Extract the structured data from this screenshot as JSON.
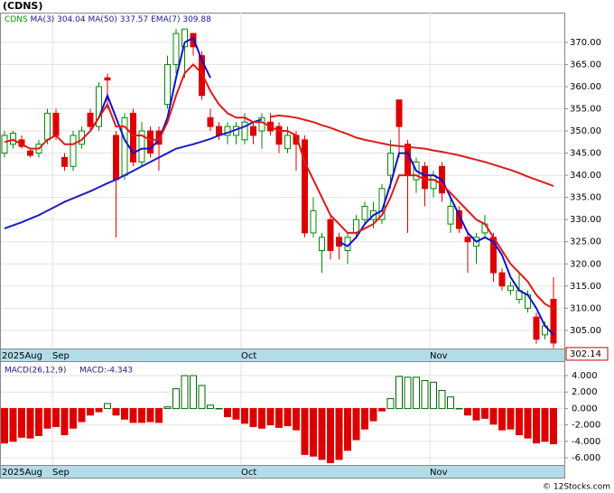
{
  "chart_data": {
    "type": "candlestick",
    "title": "(CDNS)",
    "symbol": "CDNS",
    "symbol_color": "#009900",
    "categories": [
      "2025Aug",
      null,
      null,
      null,
      null,
      null,
      "Sep",
      null,
      null,
      null,
      null,
      null,
      null,
      null,
      null,
      null,
      null,
      null,
      null,
      null,
      null,
      null,
      null,
      null,
      null,
      null,
      null,
      null,
      "Oct",
      null,
      null,
      null,
      null,
      null,
      null,
      null,
      null,
      null,
      null,
      null,
      null,
      null,
      null,
      null,
      null,
      null,
      null,
      null,
      null,
      null,
      "Nov",
      null,
      null,
      null,
      null,
      null,
      null,
      null,
      null,
      null,
      null,
      null,
      null,
      null,
      null
    ],
    "ohlc": {
      "open": [
        345,
        347,
        348,
        345.5,
        345,
        348,
        354,
        344,
        342,
        347,
        354,
        351,
        362,
        349,
        340,
        354,
        343,
        350,
        350,
        356,
        365,
        369,
        372,
        367,
        353,
        351,
        349,
        349,
        348,
        351,
        350,
        352,
        351,
        346,
        349,
        348,
        327,
        323,
        330,
        326,
        323,
        327,
        330,
        330,
        330,
        340,
        357,
        347,
        339,
        342,
        337,
        342,
        329,
        332,
        326,
        324,
        327,
        326,
        318,
        314,
        312,
        310,
        308,
        304,
        312
      ],
      "high": [
        350,
        350,
        349,
        346,
        348,
        355,
        355,
        345,
        350,
        351,
        355,
        361,
        363,
        350,
        354,
        355,
        352,
        351,
        351,
        367,
        373,
        373,
        372,
        368,
        355,
        352,
        352,
        352,
        354,
        352,
        354,
        354,
        352,
        351,
        350,
        349,
        335,
        327,
        331,
        327,
        327,
        331,
        334,
        334,
        338,
        348,
        357,
        348,
        344,
        343,
        341,
        343,
        335,
        333,
        327,
        327,
        331,
        327,
        319,
        316,
        318,
        314,
        309,
        307,
        317
      ],
      "low": [
        344,
        346,
        346,
        344,
        344,
        347,
        348,
        341,
        341,
        346,
        350,
        350,
        355,
        326,
        339,
        342,
        342,
        344,
        341,
        355,
        363,
        362,
        367,
        357,
        350,
        348,
        347,
        347,
        347,
        347,
        346,
        349,
        345,
        345,
        341,
        326,
        326,
        318,
        321,
        321,
        320,
        326,
        329,
        328,
        329,
        337,
        344,
        327,
        336,
        333,
        335,
        334,
        327,
        327,
        318,
        320,
        326,
        316,
        314,
        313,
        311,
        309,
        302,
        303,
        301
      ],
      "close": [
        349,
        349.5,
        346.5,
        344.5,
        347,
        354,
        349,
        342,
        349,
        350,
        351,
        360,
        361.5,
        339,
        353,
        343,
        350,
        345,
        347,
        365,
        372,
        373,
        369,
        358,
        351,
        349,
        351,
        351,
        352,
        349,
        353,
        350,
        347,
        349,
        347,
        327,
        332,
        326,
        323,
        324,
        326,
        330,
        333,
        332,
        337,
        345,
        351,
        340,
        343,
        337,
        340,
        336,
        333,
        328,
        325,
        326,
        329,
        318,
        315,
        315,
        314,
        313,
        303,
        306,
        302.14
      ]
    },
    "up_color": "#008800",
    "down_color": "#dd0000",
    "last_price_label": "302.14",
    "ylim": [
      300.9,
      376.7
    ],
    "yticks": [
      {
        "value": 305,
        "label": "305.00"
      },
      {
        "value": 310,
        "label": "310.00"
      },
      {
        "value": 315,
        "label": "315.00"
      },
      {
        "value": 320,
        "label": "320.00"
      },
      {
        "value": 325,
        "label": "325.00"
      },
      {
        "value": 330,
        "label": "330.00"
      },
      {
        "value": 335,
        "label": "335.00"
      },
      {
        "value": 340,
        "label": "340.00"
      },
      {
        "value": 345,
        "label": "345.00"
      },
      {
        "value": 350,
        "label": "350.00"
      },
      {
        "value": 355,
        "label": "355.00"
      },
      {
        "value": 360,
        "label": "360.00"
      },
      {
        "value": 365,
        "label": "365.00"
      },
      {
        "value": 370,
        "label": "370.00"
      }
    ],
    "grid": true,
    "lines": [
      {
        "name": "MA(3)",
        "legend_value": "304.04",
        "color": "#1010cc",
        "values": [
          null,
          null,
          null,
          null,
          null,
          null,
          null,
          null,
          null,
          null,
          350,
          353,
          358,
          353,
          348,
          345,
          346,
          346,
          348,
          353,
          362,
          370,
          371,
          366,
          362,
          null,
          null,
          null,
          null,
          null,
          null,
          null,
          null,
          null,
          null,
          null,
          null,
          null,
          null,
          325,
          324,
          326,
          329,
          331,
          332,
          338,
          345,
          345,
          341,
          340,
          340,
          339,
          335,
          331,
          327,
          325,
          326,
          325,
          322,
          317,
          314,
          313,
          310,
          306,
          304.04
        ]
      },
      {
        "name": "MA(50)",
        "legend_value": "337.57",
        "color": "#dd1c1c",
        "early_color": "#1c1cc8",
        "early_until": 31,
        "values": [
          328,
          328.7,
          329.4,
          330.2,
          331,
          332,
          333,
          334,
          334.8,
          335.6,
          336.4,
          337.3,
          338.2,
          339,
          340,
          341,
          342,
          343,
          344,
          345,
          346,
          346.5,
          347,
          347.6,
          348.2,
          349,
          349.6,
          350.3,
          351,
          352,
          352.6,
          353.2,
          353.5,
          353.3,
          353,
          352.5,
          352,
          351.3,
          350.7,
          350,
          349.3,
          348.5,
          348,
          347.6,
          347.2,
          346.8,
          346.6,
          346.4,
          346.2,
          346,
          345.6,
          345.3,
          344.9,
          344.5,
          344,
          343.5,
          343,
          342.4,
          341.8,
          341.2,
          340.5,
          339.7,
          339,
          338.3,
          337.57
        ]
      },
      {
        "name": "EMA(7)",
        "legend_value": "309.88",
        "color": "#e01818",
        "values": [
          347.5,
          348,
          347,
          346,
          346,
          348,
          349,
          347,
          347,
          348,
          350,
          353,
          356,
          351,
          351,
          349,
          349,
          348,
          348,
          352,
          358,
          363,
          365,
          363,
          359,
          356,
          354,
          353,
          353,
          352,
          352,
          351,
          350,
          350,
          349,
          343,
          339,
          335,
          331,
          329,
          327,
          327,
          328,
          329,
          331,
          335,
          340,
          340,
          340,
          339,
          339,
          338,
          336,
          334,
          332,
          330,
          329,
          326,
          323,
          320,
          318,
          316,
          313,
          311,
          309.88
        ]
      }
    ],
    "macd": {
      "title": "MACD(26,12,9)",
      "label": "MACD:-4.343",
      "up_color": "#006600",
      "down_color": "#dd0000",
      "values": [
        -4.2,
        -4,
        -3.5,
        -3.6,
        -3.3,
        -2.4,
        -2.2,
        -3.2,
        -2.4,
        -1.6,
        -0.8,
        -0.4,
        0.6,
        -0.8,
        -1.3,
        -1.7,
        -1.7,
        -1.6,
        -1.7,
        0.2,
        2.4,
        4,
        4,
        2.8,
        0.4,
        0,
        -1,
        -1.3,
        -1.8,
        -2.2,
        -2.4,
        -2,
        -2.3,
        -2.1,
        -2.6,
        -5.6,
        -5.8,
        -6.2,
        -6.6,
        -6.2,
        -5.1,
        -3.8,
        -2.5,
        -1.5,
        -0.3,
        1.2,
        3.9,
        3.8,
        3.8,
        3.4,
        3.2,
        2.2,
        1.4,
        0,
        -0.8,
        -1.4,
        -1.2,
        -1.9,
        -2.6,
        -2.5,
        -3.2,
        -3.6,
        -4.2,
        -4,
        -4.3
      ],
      "ylim": [
        -6.88,
        5.65
      ],
      "yticks": [
        {
          "value": 4,
          "label": "4.000"
        },
        {
          "value": 2,
          "label": "2.000"
        },
        {
          "value": 0,
          "label": "0.000"
        },
        {
          "value": -2,
          "label": "-2.000"
        },
        {
          "value": -4,
          "label": "-4.000"
        },
        {
          "value": -6,
          "label": "-6.000"
        }
      ]
    },
    "footer": "© 12Stocks.com"
  }
}
